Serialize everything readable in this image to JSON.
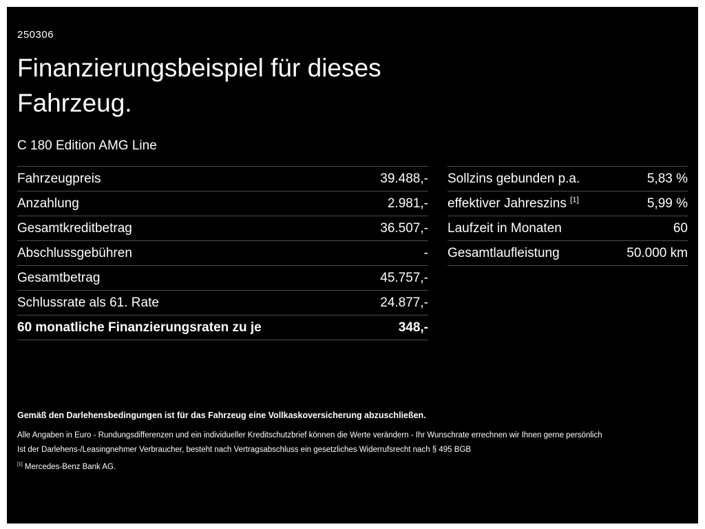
{
  "document_code": "250306",
  "heading": {
    "line1": "Finanzierungsbeispiel für dieses",
    "line2": "Fahrzeug."
  },
  "vehicle_model": "C 180 Edition AMG Line",
  "finance_table": {
    "rows": [
      {
        "label": "Fahrzeugpreis",
        "value": "39.488,-"
      },
      {
        "label": "Anzahlung",
        "value": "2.981,-"
      },
      {
        "label": "Gesamtkreditbetrag",
        "value": "36.507,-"
      },
      {
        "label": "Abschlussgebühren",
        "value": "-"
      },
      {
        "label": "Gesamtbetrag",
        "value": "45.757,-"
      },
      {
        "label": "Schlussrate als 61. Rate",
        "value": "24.877,-"
      },
      {
        "label": "60 monatliche Finanzierungsraten zu je",
        "value": "348,-",
        "bold": true
      }
    ]
  },
  "conditions_table": {
    "rows": [
      {
        "label": "Sollzins gebunden p.a.",
        "value": "5,83 %"
      },
      {
        "label": "effektiver Jahreszins ",
        "sup": "[1]",
        "value": "5,99 %"
      },
      {
        "label": "Laufzeit in Monaten",
        "value": "60"
      },
      {
        "label": "Gesamtlaufleistung",
        "value": "50.000 km"
      }
    ]
  },
  "footnotes": {
    "insurance_note": "Gemäß den Darlehensbedingungen ist für das Fahrzeug eine Vollkaskoversicherung abzuschließen.",
    "disclaimer_line1": "Alle Angaben in Euro - Rundungsdifferenzen und ein individueller Kreditschutzbrief können die Werte verändern - Ihr Wunschrate errechnen wir Ihnen gerne persönlich",
    "disclaimer_line2": "Ist der Darlehens-/Leasingnehmer Verbraucher, besteht nach Vertragsabschluss ein gesetzliches Widerrufsrecht nach § 495 BGB",
    "bank_sup": "[1]",
    "bank_text": " Mercedes-Benz Bank AG."
  },
  "colors": {
    "background": "#000000",
    "text": "#ffffff",
    "divider": "#4d4d4d",
    "frame": "#ffffff"
  }
}
